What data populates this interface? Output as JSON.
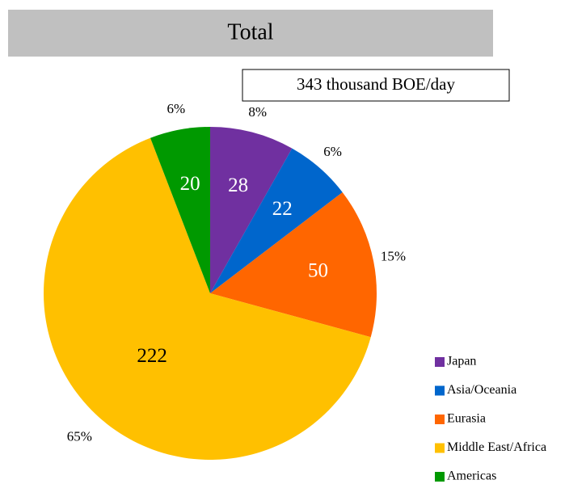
{
  "chart_data": {
    "type": "pie",
    "title": "Total",
    "subtitle": "343 thousand BOE/day",
    "categories": [
      "Japan",
      "Asia/Oceania",
      "Eurasia",
      "Middle East/Africa",
      "Americas"
    ],
    "values": [
      28,
      22,
      50,
      222,
      20
    ],
    "percent_labels": [
      "8%",
      "6%",
      "15%",
      "65%",
      "6%"
    ],
    "colors": [
      "#7030a0",
      "#0066cc",
      "#ff6600",
      "#ffc000",
      "#009900"
    ],
    "label_colors": [
      "#ffffff",
      "#ffffff",
      "#ffffff",
      "#000000",
      "#ffffff"
    ],
    "legend": "right"
  }
}
